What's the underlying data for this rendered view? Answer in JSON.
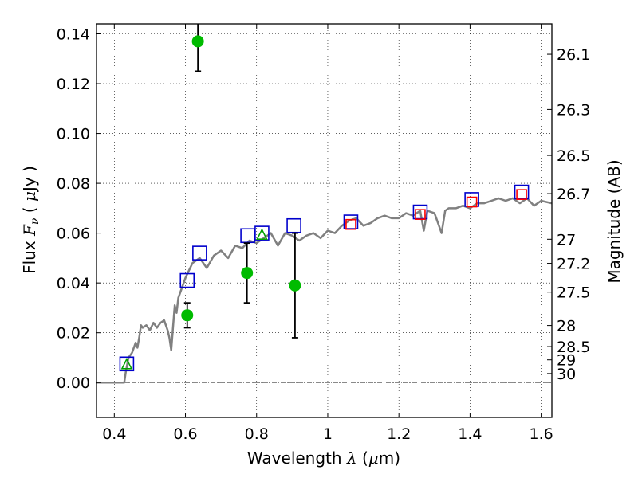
{
  "chart_data": {
    "type": "scatter",
    "xlabel": "Wavelength  λ (μm)",
    "xlabel_parts": [
      "Wavelength  ",
      "λ",
      " (",
      "μ",
      "m)"
    ],
    "ylabel": "Flux  Fν  ( μJy )",
    "ylabel_parts": [
      "Flux  ",
      "F",
      "ν",
      "  ( ",
      "μ",
      "Jy )"
    ],
    "y2label": "Magnitude (AB)",
    "xlim": [
      0.35,
      1.63
    ],
    "ylim": [
      -0.014,
      0.144
    ],
    "grid": true,
    "x_ticks": [
      0.4,
      0.6,
      0.8,
      1.0,
      1.2,
      1.4,
      1.6
    ],
    "x_tick_labels": [
      "0.4",
      "0.6",
      "0.8",
      "1",
      "1.2",
      "1.4",
      "1.6"
    ],
    "y_ticks": [
      0.0,
      0.02,
      0.04,
      0.06,
      0.08,
      0.1,
      0.12,
      0.14
    ],
    "y_tick_labels": [
      "0.00",
      "0.02",
      "0.04",
      "0.06",
      "0.08",
      "0.10",
      "0.12",
      "0.14"
    ],
    "mag_ticks": [
      {
        "mag": 26.1,
        "label": "26.1"
      },
      {
        "mag": 26.3,
        "label": "26.3"
      },
      {
        "mag": 26.5,
        "label": "26.5"
      },
      {
        "mag": 26.7,
        "label": "26.7"
      },
      {
        "mag": 27.0,
        "label": "27"
      },
      {
        "mag": 27.2,
        "label": "27.2"
      },
      {
        "mag": 27.5,
        "label": "27.5"
      },
      {
        "mag": 28.0,
        "label": "28"
      },
      {
        "mag": 28.5,
        "label": "28.5"
      },
      {
        "mag": 29.0,
        "label": "29"
      },
      {
        "mag": 30.0,
        "label": "30"
      }
    ],
    "series": [
      {
        "name": "model spectrum",
        "kind": "line",
        "color": "#808080",
        "x": [
          0.35,
          0.428,
          0.432,
          0.44,
          0.45,
          0.46,
          0.465,
          0.47,
          0.475,
          0.48,
          0.49,
          0.5,
          0.51,
          0.52,
          0.53,
          0.54,
          0.55,
          0.555,
          0.56,
          0.565,
          0.57,
          0.575,
          0.58,
          0.6,
          0.62,
          0.64,
          0.66,
          0.68,
          0.7,
          0.72,
          0.74,
          0.76,
          0.78,
          0.8,
          0.82,
          0.84,
          0.86,
          0.88,
          0.9,
          0.92,
          0.94,
          0.96,
          0.98,
          1.0,
          1.02,
          1.04,
          1.06,
          1.08,
          1.1,
          1.12,
          1.14,
          1.16,
          1.18,
          1.2,
          1.22,
          1.24,
          1.26,
          1.27,
          1.28,
          1.3,
          1.32,
          1.33,
          1.34,
          1.36,
          1.38,
          1.4,
          1.42,
          1.44,
          1.46,
          1.48,
          1.5,
          1.52,
          1.54,
          1.56,
          1.58,
          1.6,
          1.63
        ],
        "y": [
          0.0,
          0.0,
          0.004,
          0.01,
          0.012,
          0.016,
          0.014,
          0.018,
          0.023,
          0.022,
          0.023,
          0.021,
          0.024,
          0.022,
          0.024,
          0.025,
          0.021,
          0.018,
          0.013,
          0.022,
          0.031,
          0.028,
          0.034,
          0.042,
          0.048,
          0.05,
          0.046,
          0.051,
          0.053,
          0.05,
          0.055,
          0.054,
          0.057,
          0.056,
          0.058,
          0.06,
          0.055,
          0.06,
          0.059,
          0.057,
          0.059,
          0.06,
          0.058,
          0.061,
          0.06,
          0.063,
          0.065,
          0.066,
          0.063,
          0.064,
          0.066,
          0.067,
          0.066,
          0.066,
          0.068,
          0.067,
          0.069,
          0.061,
          0.069,
          0.068,
          0.06,
          0.069,
          0.07,
          0.07,
          0.071,
          0.07,
          0.072,
          0.072,
          0.073,
          0.074,
          0.073,
          0.074,
          0.072,
          0.074,
          0.071,
          0.073,
          0.072
        ]
      },
      {
        "name": "model bandpass (blue squares)",
        "kind": "marker",
        "marker": "square",
        "color": "#0000cc",
        "x": [
          0.435,
          0.605,
          0.64,
          0.775,
          0.815,
          0.905,
          1.065,
          1.26,
          1.405,
          1.545
        ],
        "y": [
          0.0075,
          0.041,
          0.052,
          0.059,
          0.06,
          0.063,
          0.0645,
          0.0685,
          0.0735,
          0.0765
        ]
      },
      {
        "name": "model bandpass (red squares)",
        "kind": "marker",
        "marker": "square",
        "color": "#ff0000",
        "x": [
          1.065,
          1.26,
          1.405,
          1.545
        ],
        "y": [
          0.0635,
          0.0675,
          0.0725,
          0.0755
        ]
      },
      {
        "name": "model bandpass (green triangles)",
        "kind": "marker",
        "marker": "triangle",
        "color": "#00a000",
        "x": [
          0.435,
          0.815
        ],
        "y": [
          0.0075,
          0.0595
        ]
      },
      {
        "name": "observed",
        "kind": "errorbar",
        "marker": "circle",
        "color": "#00bb00",
        "x": [
          0.605,
          0.635,
          0.773,
          0.908
        ],
        "y": [
          0.027,
          0.137,
          0.044,
          0.039
        ],
        "yerr_low": [
          0.022,
          0.125,
          0.032,
          0.018
        ],
        "yerr_high": [
          0.032,
          0.15,
          0.056,
          0.06
        ]
      }
    ]
  }
}
